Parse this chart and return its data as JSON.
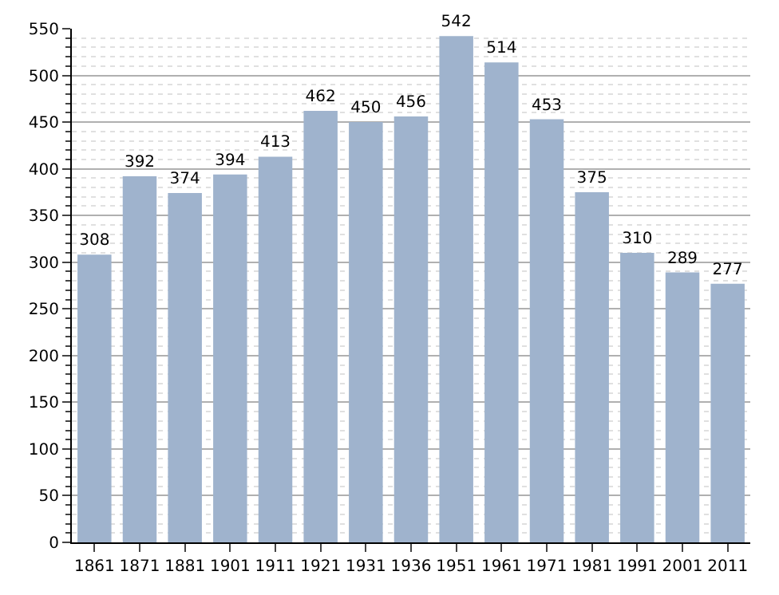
{
  "chart_data": {
    "type": "bar",
    "categories": [
      "1861",
      "1871",
      "1881",
      "1901",
      "1911",
      "1921",
      "1931",
      "1936",
      "1951",
      "1961",
      "1971",
      "1981",
      "1991",
      "2001",
      "2011"
    ],
    "values": [
      308,
      392,
      374,
      394,
      413,
      462,
      450,
      456,
      542,
      514,
      453,
      375,
      310,
      289,
      277
    ],
    "color": "#9fb3cd",
    "ylim": [
      0,
      550
    ],
    "yticks": [
      0,
      50,
      100,
      150,
      200,
      250,
      300,
      350,
      400,
      450,
      500,
      550
    ],
    "grid": "y",
    "data_labels": true
  }
}
